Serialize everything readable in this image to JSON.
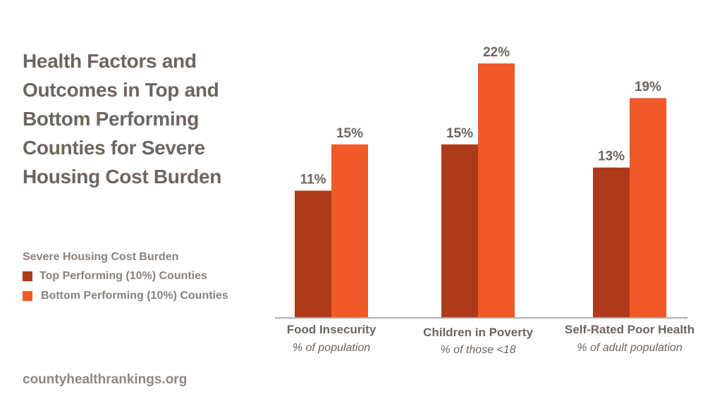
{
  "title": "Health Factors and Outcomes in Top and Bottom Performing Counties for Severe Housing Cost Burden",
  "title_lines": [
    "Health Factors and",
    "Outcomes in Top and",
    "Bottom Performing",
    "Counties for Severe",
    "Housing Cost Burden"
  ],
  "source": "countyhealthrankings.org",
  "chart_data": {
    "type": "bar",
    "title": "Health Factors and Outcomes in Top and Bottom Performing Counties for Severe Housing Cost Burden",
    "categories": [
      "Food Insecurity",
      "Children in Poverty",
      "Self-Rated Poor Health"
    ],
    "category_subtitles": [
      "% of population",
      "% of those <18",
      "% of adult population"
    ],
    "legend_title": "Severe Housing Cost Burden",
    "legend_position": "left",
    "series": [
      {
        "name": "Top Performing (10%) Counties",
        "color": "#ae3a1c",
        "values": [
          11,
          15,
          13
        ],
        "labels": [
          "11%",
          "15%",
          "13%"
        ]
      },
      {
        "name": "Bottom Performing (10%) Counties",
        "color": "#f05a28",
        "values": [
          15,
          22,
          19
        ],
        "labels": [
          "15%",
          "22%",
          "19%"
        ]
      }
    ],
    "xlabel": "",
    "ylabel": "",
    "ylim": [
      0,
      22
    ],
    "grid": false,
    "unit": "%"
  }
}
